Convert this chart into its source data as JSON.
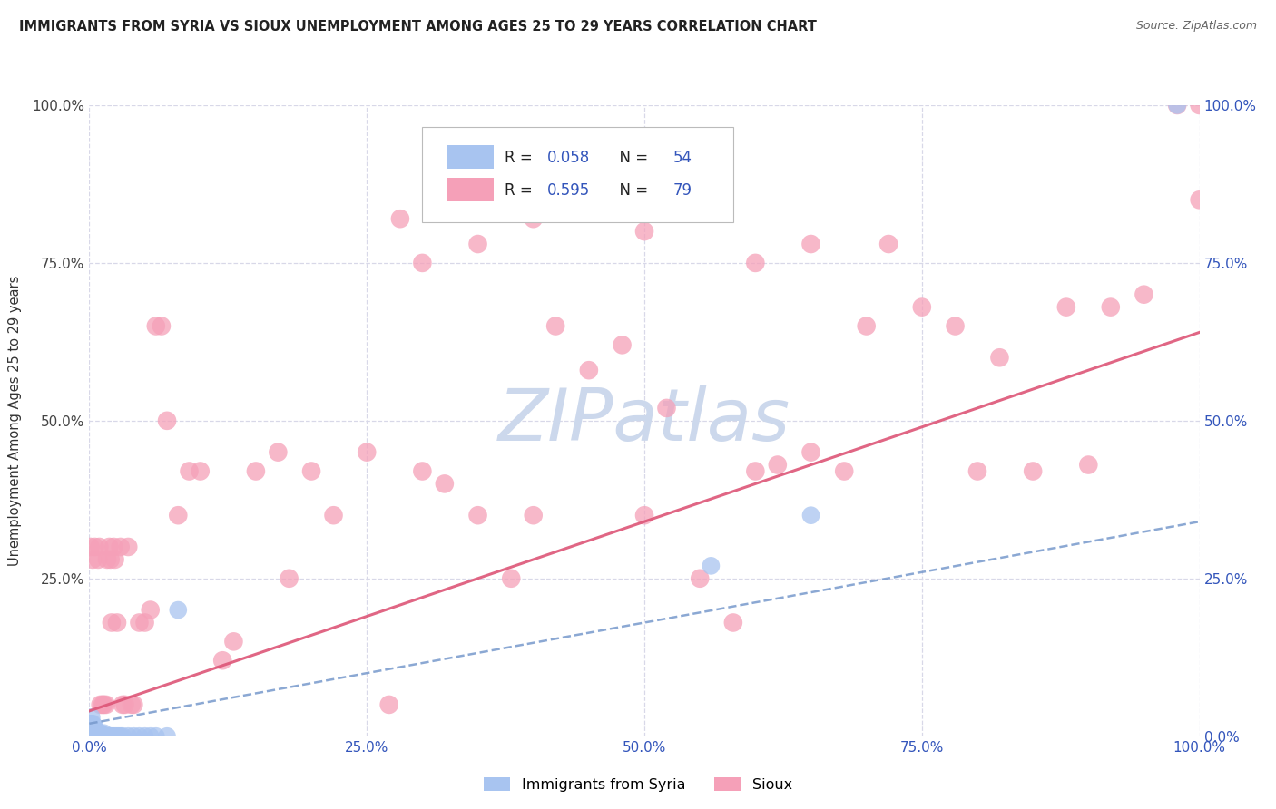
{
  "title": "IMMIGRANTS FROM SYRIA VS SIOUX UNEMPLOYMENT AMONG AGES 25 TO 29 YEARS CORRELATION CHART",
  "source": "Source: ZipAtlas.com",
  "ylabel": "Unemployment Among Ages 25 to 29 years",
  "xlim": [
    0,
    1.0
  ],
  "ylim": [
    0,
    1.0
  ],
  "syria_color": "#a8c4f0",
  "sioux_color": "#f5a0b8",
  "syria_R": 0.058,
  "syria_N": 54,
  "sioux_R": 0.595,
  "sioux_N": 79,
  "accent_color": "#3355bb",
  "watermark_text": "ZIPatlas",
  "watermark_color": "#ccd8ec",
  "syria_line_color": "#7799cc",
  "sioux_line_color": "#dd5577",
  "background_color": "#ffffff",
  "grid_color": "#d8d8e8",
  "syria_x": [
    0.001,
    0.001,
    0.001,
    0.002,
    0.002,
    0.002,
    0.002,
    0.003,
    0.003,
    0.003,
    0.003,
    0.004,
    0.004,
    0.004,
    0.005,
    0.005,
    0.005,
    0.005,
    0.006,
    0.006,
    0.006,
    0.007,
    0.007,
    0.008,
    0.008,
    0.009,
    0.009,
    0.01,
    0.01,
    0.011,
    0.012,
    0.013,
    0.014,
    0.015,
    0.016,
    0.017,
    0.019,
    0.02,
    0.022,
    0.024,
    0.026,
    0.028,
    0.03,
    0.035,
    0.04,
    0.045,
    0.05,
    0.055,
    0.06,
    0.07,
    0.08,
    0.56,
    0.65,
    0.98
  ],
  "syria_y": [
    0.0,
    0.01,
    0.02,
    0.0,
    0.01,
    0.02,
    0.03,
    0.0,
    0.005,
    0.01,
    0.02,
    0.0,
    0.005,
    0.01,
    0.0,
    0.005,
    0.01,
    0.015,
    0.0,
    0.005,
    0.01,
    0.0,
    0.005,
    0.0,
    0.005,
    0.0,
    0.005,
    0.0,
    0.005,
    0.0,
    0.0,
    0.005,
    0.0,
    0.0,
    0.0,
    0.0,
    0.0,
    0.0,
    0.0,
    0.0,
    0.0,
    0.0,
    0.0,
    0.0,
    0.0,
    0.0,
    0.0,
    0.0,
    0.0,
    0.0,
    0.2,
    0.27,
    0.35,
    1.0
  ],
  "sioux_x": [
    0.001,
    0.003,
    0.005,
    0.008,
    0.009,
    0.01,
    0.012,
    0.013,
    0.015,
    0.016,
    0.018,
    0.019,
    0.02,
    0.022,
    0.023,
    0.025,
    0.028,
    0.03,
    0.032,
    0.035,
    0.038,
    0.04,
    0.045,
    0.05,
    0.055,
    0.06,
    0.065,
    0.07,
    0.08,
    0.09,
    0.1,
    0.12,
    0.13,
    0.15,
    0.17,
    0.18,
    0.2,
    0.22,
    0.25,
    0.27,
    0.3,
    0.32,
    0.35,
    0.38,
    0.4,
    0.42,
    0.45,
    0.48,
    0.5,
    0.52,
    0.55,
    0.58,
    0.6,
    0.62,
    0.65,
    0.68,
    0.7,
    0.72,
    0.75,
    0.78,
    0.8,
    0.82,
    0.85,
    0.88,
    0.9,
    0.92,
    0.95,
    0.98,
    1.0,
    1.0,
    0.28,
    0.3,
    0.35,
    0.4,
    0.45,
    0.5,
    0.55,
    0.6,
    0.65
  ],
  "sioux_y": [
    0.3,
    0.28,
    0.3,
    0.28,
    0.3,
    0.05,
    0.05,
    0.05,
    0.05,
    0.28,
    0.3,
    0.28,
    0.18,
    0.3,
    0.28,
    0.18,
    0.3,
    0.05,
    0.05,
    0.3,
    0.05,
    0.05,
    0.18,
    0.18,
    0.2,
    0.65,
    0.65,
    0.5,
    0.35,
    0.42,
    0.42,
    0.12,
    0.15,
    0.42,
    0.45,
    0.25,
    0.42,
    0.35,
    0.45,
    0.05,
    0.42,
    0.4,
    0.35,
    0.25,
    0.35,
    0.65,
    0.58,
    0.62,
    0.35,
    0.52,
    0.25,
    0.18,
    0.42,
    0.43,
    0.45,
    0.42,
    0.65,
    0.78,
    0.68,
    0.65,
    0.42,
    0.6,
    0.42,
    0.68,
    0.43,
    0.68,
    0.7,
    1.0,
    1.0,
    0.85,
    0.82,
    0.75,
    0.78,
    0.82,
    0.88,
    0.8,
    0.85,
    0.75,
    0.78
  ],
  "syria_slope": 0.32,
  "syria_intercept": 0.02,
  "sioux_slope": 0.6,
  "sioux_intercept": 0.04
}
